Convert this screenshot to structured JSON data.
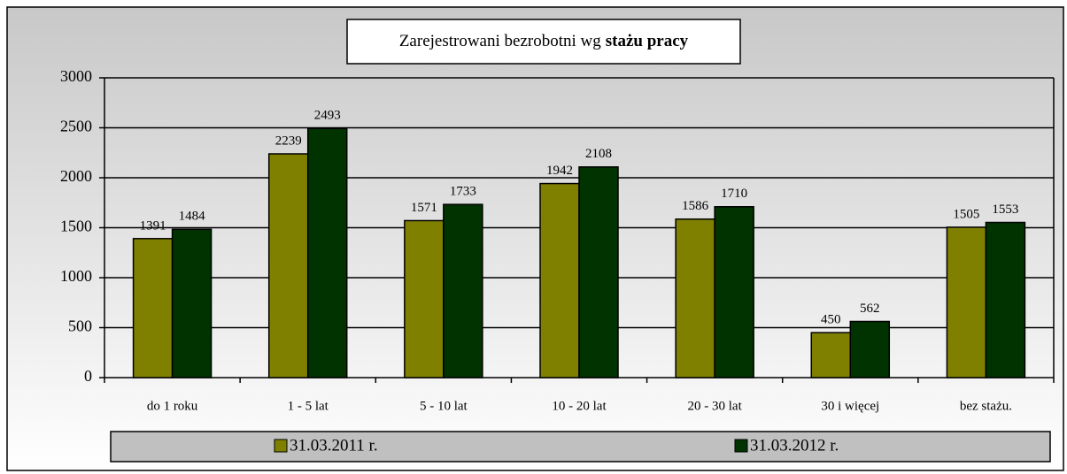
{
  "chart_data": {
    "type": "bar",
    "title": [
      "Zarejestrowani bezrobotni wg",
      "stażu pracy"
    ],
    "categories": [
      "do 1 roku",
      "1 - 5 lat",
      "5 - 10 lat",
      "10 - 20 lat",
      "20 - 30 lat",
      "30 i więcej",
      "bez stażu."
    ],
    "series": [
      {
        "name": "31.03.2011 r.",
        "color": "#808000",
        "values": [
          1391,
          2239,
          1571,
          1942,
          1586,
          450,
          1505
        ]
      },
      {
        "name": "31.03.2012 r.",
        "color": "#003300",
        "values": [
          1484,
          2493,
          1733,
          2108,
          1710,
          562,
          1553
        ]
      }
    ],
    "ylim": [
      0,
      3000
    ],
    "yticks": [
      0,
      500,
      1000,
      1500,
      2000,
      2500,
      3000
    ],
    "grid": true,
    "legend": "bottom"
  }
}
